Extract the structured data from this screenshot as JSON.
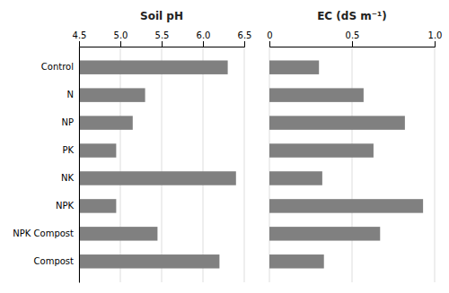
{
  "chart_data": [
    {
      "type": "bar",
      "orientation": "horizontal",
      "title": "Soil pH",
      "categories": [
        "Control",
        "N",
        "NP",
        "PK",
        "NK",
        "NPK",
        "NPK Compost",
        "Compost"
      ],
      "values": [
        6.3,
        5.3,
        5.15,
        4.95,
        6.4,
        4.95,
        5.45,
        6.2
      ],
      "color": "#808080",
      "xlim": [
        4.5,
        6.5
      ],
      "xticks": [
        4.5,
        {
          "value": 5.0,
          "label": "5.0"
        },
        5.5,
        {
          "value": 6.0,
          "label": "6.0"
        },
        6.5
      ],
      "grid": true
    },
    {
      "type": "bar",
      "orientation": "horizontal",
      "title": "EC (dS m⁻¹)",
      "categories": [
        "Control",
        "N",
        "NP",
        "PK",
        "NK",
        "NPK",
        "NPK Compost",
        "Compost"
      ],
      "values": [
        0.3,
        0.57,
        0.82,
        0.63,
        0.32,
        0.93,
        0.67,
        0.33
      ],
      "color": "#808080",
      "xlim": [
        0,
        1.0
      ],
      "xticks": [
        0,
        0.5,
        {
          "value": 1.0,
          "label": "1.0"
        }
      ],
      "grid": true,
      "tick_labels": "x"
    }
  ]
}
